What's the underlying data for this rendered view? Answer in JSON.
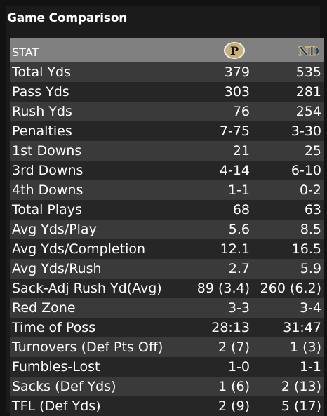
{
  "panel": {
    "title": "Game Comparison",
    "stat_header": "STAT",
    "team1": {
      "logo_letter": "P",
      "logo_icon": "purdue-logo-icon",
      "logo_color": "#c9b07a"
    },
    "team2": {
      "logo_letter": "ND",
      "logo_icon": "notre-dame-logo-icon",
      "logo_color": "#1e3a5f"
    }
  },
  "rows": [
    {
      "stat": "Total Yds",
      "team1": "379",
      "team2": "535"
    },
    {
      "stat": "Pass Yds",
      "team1": "303",
      "team2": "281"
    },
    {
      "stat": "Rush Yds",
      "team1": "76",
      "team2": "254"
    },
    {
      "stat": "Penalties",
      "team1": "7-75",
      "team2": "3-30"
    },
    {
      "stat": "1st Downs",
      "team1": "21",
      "team2": "25"
    },
    {
      "stat": "3rd Downs",
      "team1": "4-14",
      "team2": "6-10"
    },
    {
      "stat": "4th Downs",
      "team1": "1-1",
      "team2": "0-2"
    },
    {
      "stat": "Total Plays",
      "team1": "68",
      "team2": "63"
    },
    {
      "stat": "Avg Yds/Play",
      "team1": "5.6",
      "team2": "8.5"
    },
    {
      "stat": "Avg Yds/Completion",
      "team1": "12.1",
      "team2": "16.5"
    },
    {
      "stat": "Avg Yds/Rush",
      "team1": "2.7",
      "team2": "5.9"
    },
    {
      "stat": "Sack-Adj Rush Yd(Avg)",
      "team1": "89 (3.4)",
      "team2": "260 (6.2)"
    },
    {
      "stat": "Red Zone",
      "team1": "3-3",
      "team2": "3-4"
    },
    {
      "stat": "Time of Poss",
      "team1": "28:13",
      "team2": "31:47"
    },
    {
      "stat": "Turnovers (Def Pts Off)",
      "team1": "2 (7)",
      "team2": "1 (3)"
    },
    {
      "stat": "Fumbles-Lost",
      "team1": "1-0",
      "team2": "1-1"
    },
    {
      "stat": "Sacks (Def Yds)",
      "team1": "1 (6)",
      "team2": "2 (13)"
    },
    {
      "stat": "TFL (Def Yds)",
      "team1": "2 (9)",
      "team2": "5 (17)"
    }
  ]
}
